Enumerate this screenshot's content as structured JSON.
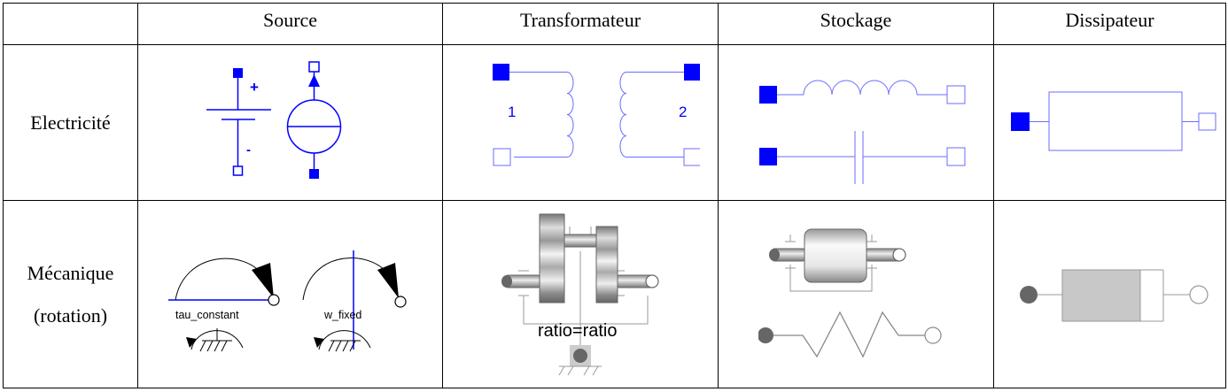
{
  "table": {
    "columns": [
      "",
      "Source",
      "Transformateur",
      "Stockage",
      "Dissipateur"
    ],
    "rows": [
      {
        "label": "Electricité"
      },
      {
        "label_line1": "Mécanique",
        "label_line2": "(rotation)"
      }
    ]
  },
  "elec": {
    "source": {
      "plus": "+",
      "minus": "-"
    },
    "transformer": {
      "port1": "1",
      "port2": "2"
    }
  },
  "mech": {
    "source": {
      "torque_label": "tau_constant",
      "speed_label": "w_fixed"
    },
    "transformer": {
      "ratio_label": "ratio=ratio"
    }
  },
  "colors": {
    "electric_blue": "#0000ff",
    "electric_line": "#6b6bff",
    "mech_gray": "#666666",
    "mech_light": "#cccccc"
  }
}
